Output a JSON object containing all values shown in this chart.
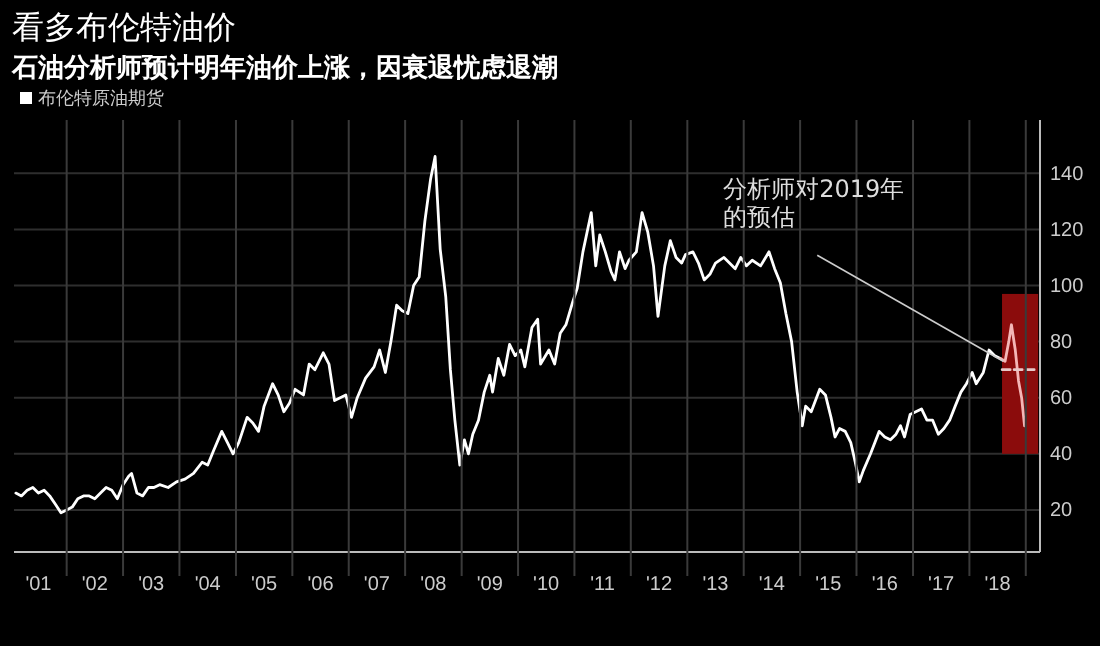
{
  "chart_data": {
    "type": "line",
    "title": "看多布伦特油价",
    "subtitle": "石油分析师预计明年油价上涨，因衰退忧虑退潮",
    "legend": "top left",
    "grid": true,
    "xlim": [
      "2001-01-25",
      "2019-04-03"
    ],
    "ylim": [
      5,
      159
    ],
    "xticks": [
      {
        "value": "2001-07-02",
        "label": "'01"
      },
      {
        "value": "2002-07-02",
        "label": "'02"
      },
      {
        "value": "2003-07-02",
        "label": "'03"
      },
      {
        "value": "2004-07-02",
        "label": "'04"
      },
      {
        "value": "2005-07-02",
        "label": "'05"
      },
      {
        "value": "2006-07-02",
        "label": "'06"
      },
      {
        "value": "2007-07-02",
        "label": "'07"
      },
      {
        "value": "2008-07-02",
        "label": "'08"
      },
      {
        "value": "2009-07-02",
        "label": "'09"
      },
      {
        "value": "2010-07-02",
        "label": "'10"
      },
      {
        "value": "2011-07-02",
        "label": "'11"
      },
      {
        "value": "2012-07-02",
        "label": "'12"
      },
      {
        "value": "2013-07-02",
        "label": "'13"
      },
      {
        "value": "2014-07-02",
        "label": "'14"
      },
      {
        "value": "2015-07-02",
        "label": "'15"
      },
      {
        "value": "2016-07-02",
        "label": "'16"
      },
      {
        "value": "2017-07-02",
        "label": "'17"
      },
      {
        "value": "2018-07-02",
        "label": "'18"
      },
      {
        "value": "2002-01-01",
        "label": null
      },
      {
        "value": "2003-01-01",
        "label": null
      },
      {
        "value": "2004-01-01",
        "label": null
      },
      {
        "value": "2005-01-01",
        "label": null
      },
      {
        "value": "2006-01-01",
        "label": null
      },
      {
        "value": "2007-01-01",
        "label": null
      },
      {
        "value": "2008-01-01",
        "label": null
      },
      {
        "value": "2009-01-01",
        "label": null
      },
      {
        "value": "2010-01-01",
        "label": null
      },
      {
        "value": "2011-01-01",
        "label": null
      },
      {
        "value": "2012-01-01",
        "label": null
      },
      {
        "value": "2013-01-01",
        "label": null
      },
      {
        "value": "2014-01-01",
        "label": null
      },
      {
        "value": "2015-01-01",
        "label": null
      },
      {
        "value": "2016-01-01",
        "label": null
      },
      {
        "value": "2017-01-01",
        "label": null
      },
      {
        "value": "2018-01-01",
        "label": null
      },
      {
        "value": "2019-01-01",
        "label": null
      }
    ],
    "yticks": [
      20,
      40,
      60,
      80,
      100,
      120,
      140
    ],
    "annotations": [
      {
        "text": "分析师对2019年的预估",
        "x": "2018-08-08",
        "y": 73
      }
    ],
    "series": [
      {
        "type": "bar",
        "color": "#8b0c0c",
        "x": [
          "2018-11-25"
        ],
        "base": [
          40
        ],
        "values": [
          57
        ]
      },
      {
        "name": "布伦特原油期货",
        "color": "#ffffff",
        "x": [
          "2001-02-06",
          "2001-03-14",
          "2001-04-20",
          "2001-05-27",
          "2001-07-02",
          "2001-08-08",
          "2001-09-13",
          "2001-10-20",
          "2001-11-25",
          "2002-01-01",
          "2002-02-06",
          "2002-03-14",
          "2002-04-20",
          "2002-05-27",
          "2002-07-02",
          "2002-08-08",
          "2002-09-13",
          "2002-10-20",
          "2002-11-25",
          "2003-01-01",
          "2003-02-06",
          "2003-02-25",
          "2003-04-01",
          "2003-05-08",
          "2003-06-14",
          "2003-07-20",
          "2003-08-26",
          "2003-10-20",
          "2003-12-13",
          "2004-02-06",
          "2004-04-01",
          "2004-05-27",
          "2004-07-02",
          "2004-08-08",
          "2004-10-01",
          "2004-11-07",
          "2004-12-13",
          "2005-01-19",
          "2005-03-14",
          "2005-04-20",
          "2005-05-27",
          "2005-07-02",
          "2005-08-26",
          "2005-10-01",
          "2005-11-07",
          "2005-12-13",
          "2006-01-19",
          "2006-03-14",
          "2006-04-20",
          "2006-05-27",
          "2006-07-20",
          "2006-08-26",
          "2006-10-01",
          "2006-11-07",
          "2006-12-13",
          "2007-01-19",
          "2007-02-25",
          "2007-04-20",
          "2007-06-14",
          "2007-07-20",
          "2007-08-26",
          "2007-10-01",
          "2007-11-07",
          "2007-12-13",
          "2008-01-19",
          "2008-02-25",
          "2008-04-01",
          "2008-05-08",
          "2008-06-14",
          "2008-07-13",
          "2008-08-15",
          "2008-09-20",
          "2008-10-20",
          "2008-11-18",
          "2008-12-20",
          "2009-01-19",
          "2009-02-14",
          "2009-03-14",
          "2009-04-20",
          "2009-05-27",
          "2009-07-02",
          "2009-07-20",
          "2009-08-26",
          "2009-10-01",
          "2009-11-07",
          "2009-12-13",
          "2010-01-19",
          "2010-02-14",
          "2010-04-01",
          "2010-05-08",
          "2010-05-27",
          "2010-07-20",
          "2010-08-26",
          "2010-10-01",
          "2010-11-07",
          "2010-12-20",
          "2011-01-19",
          "2011-02-25",
          "2011-04-20",
          "2011-05-19",
          "2011-06-14",
          "2011-07-20",
          "2011-08-26",
          "2011-09-20",
          "2011-10-20",
          "2011-11-25",
          "2011-12-20",
          "2012-02-06",
          "2012-03-14",
          "2012-04-20",
          "2012-05-27",
          "2012-06-25",
          "2012-08-08",
          "2012-09-13",
          "2012-10-20",
          "2012-11-25",
          "2012-12-20",
          "2013-02-06",
          "2013-03-14",
          "2013-04-20",
          "2013-05-27",
          "2013-07-02",
          "2013-08-26",
          "2013-10-01",
          "2013-11-07",
          "2013-12-13",
          "2014-01-19",
          "2014-02-25",
          "2014-04-20",
          "2014-06-14",
          "2014-07-20",
          "2014-08-26",
          "2014-10-01",
          "2014-11-07",
          "2014-12-13",
          "2015-01-15",
          "2015-02-06",
          "2015-03-14",
          "2015-05-08",
          "2015-06-14",
          "2015-07-20",
          "2015-08-15",
          "2015-09-13",
          "2015-10-20",
          "2015-11-25",
          "2015-12-24",
          "2016-01-19",
          "2016-02-14",
          "2016-04-01",
          "2016-05-27",
          "2016-07-02",
          "2016-08-08",
          "2016-09-13",
          "2016-10-12",
          "2016-11-07",
          "2016-12-13",
          "2017-01-19",
          "2017-02-25",
          "2017-04-01",
          "2017-05-08",
          "2017-06-14",
          "2017-07-20",
          "2017-08-26",
          "2017-10-01",
          "2017-11-07",
          "2017-12-13",
          "2018-01-19",
          "2018-02-14",
          "2018-04-01",
          "2018-05-08",
          "2018-06-14",
          "2018-07-20"
        ],
        "values": [
          26,
          25,
          27,
          28,
          26,
          27,
          25,
          22,
          19,
          20,
          21,
          24,
          25,
          25,
          24,
          26,
          28,
          27,
          24,
          29,
          32,
          33,
          26,
          25,
          28,
          28,
          29,
          28,
          30,
          31,
          33,
          37,
          36,
          41,
          48,
          44,
          40,
          44,
          53,
          51,
          48,
          57,
          65,
          61,
          55,
          58,
          63,
          61,
          72,
          70,
          76,
          72,
          59,
          60,
          61,
          53,
          60,
          67,
          71,
          77,
          69,
          80,
          93,
          91,
          90,
          100,
          103,
          123,
          138,
          146,
          113,
          96,
          70,
          52,
          36,
          45,
          40,
          47,
          52,
          62,
          68,
          62,
          74,
          68,
          79,
          75,
          77,
          71,
          85,
          88,
          72,
          77,
          72,
          83,
          86,
          94,
          99,
          112,
          126,
          107,
          118,
          112,
          105,
          102,
          112,
          106,
          109,
          112,
          126,
          119,
          107,
          89,
          107,
          116,
          110,
          108,
          111,
          112,
          108,
          102,
          104,
          108,
          110,
          108,
          106,
          110,
          107,
          109,
          107,
          112,
          106,
          101,
          90,
          80,
          62,
          50,
          57,
          55,
          63,
          61,
          53,
          46,
          49,
          48,
          44,
          37,
          30,
          34,
          40,
          48,
          46,
          45,
          47,
          50,
          46,
          54,
          55,
          56,
          52,
          52,
          47,
          49,
          52,
          57,
          62,
          65,
          69,
          65,
          69,
          77,
          75,
          74
        ]
      },
      {
        "color": "#f4b6b6",
        "x": [
          "2018-07-20",
          "2018-08-20",
          "2018-09-13",
          "2018-09-30",
          "2018-10-25",
          "2018-11-15",
          "2018-12-05",
          "2018-12-24"
        ],
        "values": [
          74,
          73,
          80,
          86,
          77,
          66,
          60,
          50
        ]
      },
      {
        "color": "#e8c8c8",
        "line_style": "dashed",
        "x": [
          "2018-08-01",
          "2019-03-15"
        ],
        "values": [
          70,
          70
        ]
      }
    ]
  }
}
